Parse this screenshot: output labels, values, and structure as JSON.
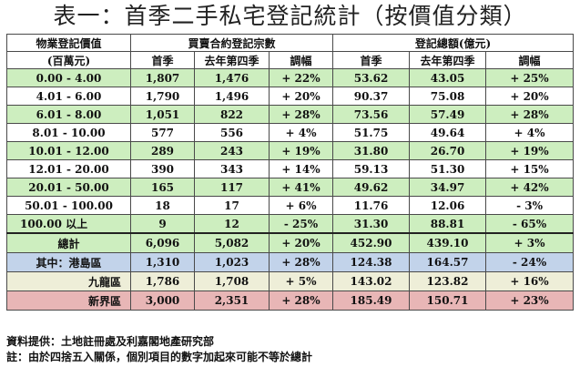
{
  "title": "表一：首季二手私宅登記統計（按價值分類）",
  "header": {
    "col_value": "物業登記價值",
    "col_value_unit": "(百萬元)",
    "group_count": "買賣合約登記宗數",
    "group_amount": "登記總額(億元)",
    "sub_q1": "首季",
    "sub_q4": "去年第四季",
    "sub_change": "調幅"
  },
  "rows": [
    {
      "range": "0.00 - 4.00",
      "c_q1": "1,807",
      "c_q4": "1,476",
      "c_chg": "+ 22%",
      "a_q1": "53.62",
      "a_q4": "43.05",
      "a_chg": "+ 25%"
    },
    {
      "range": "4.01 - 6.00",
      "c_q1": "1,790",
      "c_q4": "1,496",
      "c_chg": "+ 20%",
      "a_q1": "90.37",
      "a_q4": "75.08",
      "a_chg": "+ 20%"
    },
    {
      "range": "6.01 - 8.00",
      "c_q1": "1,051",
      "c_q4": "822",
      "c_chg": "+ 28%",
      "a_q1": "73.56",
      "a_q4": "57.49",
      "a_chg": "+ 28%"
    },
    {
      "range": "8.01 - 10.00",
      "c_q1": "577",
      "c_q4": "556",
      "c_chg": "+ 4%",
      "a_q1": "51.75",
      "a_q4": "49.64",
      "a_chg": "+ 4%"
    },
    {
      "range": "10.01 - 12.00",
      "c_q1": "289",
      "c_q4": "243",
      "c_chg": "+ 19%",
      "a_q1": "31.80",
      "a_q4": "26.70",
      "a_chg": "+ 19%"
    },
    {
      "range": "12.01 - 20.00",
      "c_q1": "390",
      "c_q4": "343",
      "c_chg": "+ 14%",
      "a_q1": "59.13",
      "a_q4": "51.30",
      "a_chg": "+ 15%"
    },
    {
      "range": "20.01 - 50.00",
      "c_q1": "165",
      "c_q4": "117",
      "c_chg": "+ 41%",
      "a_q1": "49.62",
      "a_q4": "34.97",
      "a_chg": "+ 42%"
    },
    {
      "range": "50.01 - 100.00",
      "c_q1": "18",
      "c_q4": "17",
      "c_chg": "+ 6%",
      "a_q1": "11.76",
      "a_q4": "12.06",
      "a_chg": "- 3%"
    },
    {
      "range": "100.00 以上",
      "c_q1": "9",
      "c_q4": "12",
      "c_chg": "- 25%",
      "a_q1": "31.30",
      "a_q4": "88.81",
      "a_chg": "- 65%"
    }
  ],
  "total": {
    "label": "總計",
    "c_q1": "6,096",
    "c_q4": "5,082",
    "c_chg": "+ 20%",
    "a_q1": "452.90",
    "a_q4": "439.10",
    "a_chg": "+ 3%"
  },
  "regions": [
    {
      "label": "其中：港島區",
      "c_q1": "1,310",
      "c_q4": "1,023",
      "c_chg": "+ 28%",
      "a_q1": "124.38",
      "a_q4": "164.57",
      "a_chg": "- 24%"
    },
    {
      "label": "九龍區",
      "c_q1": "1,786",
      "c_q4": "1,708",
      "c_chg": "+ 5%",
      "a_q1": "143.02",
      "a_q4": "123.82",
      "a_chg": "+ 16%"
    },
    {
      "label": "新界區",
      "c_q1": "3,000",
      "c_q4": "2,351",
      "c_chg": "+ 28%",
      "a_q1": "185.49",
      "a_q4": "150.71",
      "a_chg": "+ 23%"
    }
  ],
  "notes": {
    "source": "資料提供：土地註冊處及利嘉閣地產研究部",
    "remark": "註：由於四捨五入關係，個別項目的數字加起來可能不等於總計"
  },
  "colors": {
    "green": "#cdeebf",
    "blue": "#c2d3ea",
    "beige": "#eeeed8",
    "pink": "#e8b6b6"
  }
}
